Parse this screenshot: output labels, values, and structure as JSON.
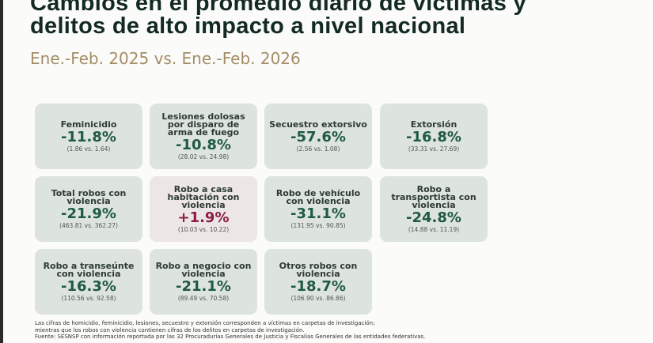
{
  "title_line1": "Cambios en el promedio diario de víctimas y",
  "title_line2": "delitos de alto impacto a nivel nacional",
  "subtitle": "Ene.-Feb. 2025 vs. Ene.-Feb. 2026",
  "colors": {
    "decrease": "#1f5a42",
    "increase": "#8c1d44",
    "card": "#dde3dd"
  },
  "cards": [
    {
      "label": "Feminicidio",
      "change": "-11.8%",
      "comparison": "(1.86 vs. 1.64)"
    },
    {
      "label": "Lesiones dolosas por disparo de arma de fuego",
      "change": "-10.8%",
      "comparison": "(28.02 vs. 24.98)"
    },
    {
      "label": "Secuestro extorsivo",
      "change": "-57.6%",
      "comparison": "(2.56 vs. 1.08)"
    },
    {
      "label": "Extorsión",
      "change": "-16.8%",
      "comparison": "(33.31 vs. 27.69)"
    },
    {
      "label": "Total robos con violencia",
      "change": "-21.9%",
      "comparison": "(463.81 vs. 362.27)"
    },
    {
      "label": "Robo a casa habitación con violencia",
      "change": "+1.9%",
      "comparison": "(10.03 vs. 10.22)"
    },
    {
      "label": "Robo de vehículo con violencia",
      "change": "-31.1%",
      "comparison": "(131.95 vs. 90.85)"
    },
    {
      "label": "Robo a transportista con violencia",
      "change": "-24.8%",
      "comparison": "(14.88 vs. 11.19)"
    },
    {
      "label": "Robo a transeúnte con violencia",
      "change": "-16.3%",
      "comparison": "(110.56 vs. 92.58)"
    },
    {
      "label": "Robo a negocio con violencia",
      "change": "-21.1%",
      "comparison": "(89.49 vs. 70.58)"
    },
    {
      "label": "Otros robos con violencia",
      "change": "-18.7%",
      "comparison": "(106.90 vs. 86.86)"
    }
  ],
  "notes": [
    "Las cifras de homicidio, feminicidio, lesiones, secuestro y extorsión corresponden a víctimas en carpetas de investigación;",
    "mientras que los robos con violencia contienen cifras de los delitos en carpetas de investigación.",
    "Fuente: SESNSP con información reportada por las 32 Procuradurías Generales de Justicia y Fiscalías Generales de las entidades federativas."
  ]
}
